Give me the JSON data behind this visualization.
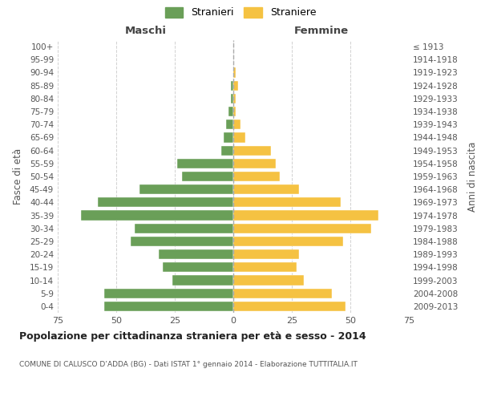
{
  "age_groups": [
    "100+",
    "95-99",
    "90-94",
    "85-89",
    "80-84",
    "75-79",
    "70-74",
    "65-69",
    "60-64",
    "55-59",
    "50-54",
    "45-49",
    "40-44",
    "35-39",
    "30-34",
    "25-29",
    "20-24",
    "15-19",
    "10-14",
    "5-9",
    "0-4"
  ],
  "birth_years": [
    "≤ 1913",
    "1914-1918",
    "1919-1923",
    "1924-1928",
    "1929-1933",
    "1934-1938",
    "1939-1943",
    "1944-1948",
    "1949-1953",
    "1954-1958",
    "1959-1963",
    "1964-1968",
    "1969-1973",
    "1974-1978",
    "1979-1983",
    "1984-1988",
    "1989-1993",
    "1994-1998",
    "1999-2003",
    "2004-2008",
    "2009-2013"
  ],
  "maschi": [
    0,
    0,
    0,
    1,
    1,
    2,
    3,
    4,
    5,
    24,
    22,
    40,
    58,
    65,
    42,
    44,
    32,
    30,
    26,
    55,
    55
  ],
  "femmine": [
    0,
    0,
    1,
    2,
    1,
    1,
    3,
    5,
    16,
    18,
    20,
    28,
    46,
    62,
    59,
    47,
    28,
    27,
    30,
    42,
    48
  ],
  "color_maschi": "#6a9f58",
  "color_femmine": "#f5c242",
  "title": "Popolazione per cittadinanza straniera per età e sesso - 2014",
  "subtitle": "COMUNE DI CALUSCO D’ADDA (BG) - Dati ISTAT 1° gennaio 2014 - Elaborazione TUTTITALIA.IT",
  "ylabel_left": "Fasce di età",
  "ylabel_right": "Anni di nascita",
  "xlabel_left": "Maschi",
  "xlabel_right": "Femmine",
  "legend_maschi": "Stranieri",
  "legend_femmine": "Straniere",
  "xlim": 75,
  "background_color": "#ffffff",
  "grid_color": "#cccccc"
}
